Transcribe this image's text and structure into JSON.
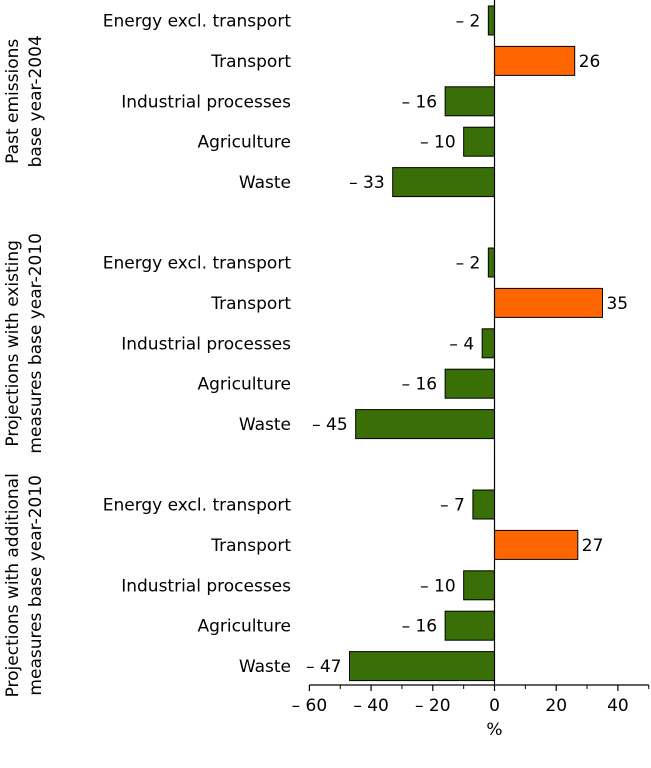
{
  "chart_data": {
    "type": "bar",
    "orientation": "horizontal",
    "xlabel": "%",
    "xlim": [
      -60,
      50
    ],
    "xticks": [
      -60,
      -40,
      -20,
      0,
      20,
      40
    ],
    "xtick_labels": [
      "– 60",
      "– 40",
      "– 20",
      "0",
      "20",
      "40"
    ],
    "colors": {
      "negative": "#3a6e06",
      "positive": "#ff6600"
    },
    "groups": [
      {
        "title_lines": [
          "Past emissions",
          "base year-2004"
        ],
        "categories": [
          "Energy excl. transport",
          "Transport",
          "Industrial processes",
          "Agriculture",
          "Waste"
        ],
        "values": [
          -2,
          26,
          -16,
          -10,
          -33
        ],
        "value_labels": [
          "– 2",
          "26",
          "– 16",
          "– 10",
          "– 33"
        ]
      },
      {
        "title_lines": [
          "Projections with existing",
          "measures base year-2010"
        ],
        "categories": [
          "Energy excl. transport",
          "Transport",
          "Industrial processes",
          "Agriculture",
          "Waste"
        ],
        "values": [
          -2,
          35,
          -4,
          -16,
          -45
        ],
        "value_labels": [
          "– 2",
          "35",
          "– 4",
          "– 16",
          "– 45"
        ]
      },
      {
        "title_lines": [
          "Projections with additional",
          "measures base year-2010"
        ],
        "categories": [
          "Energy excl. transport",
          "Transport",
          "Industrial processes",
          "Agriculture",
          "Waste"
        ],
        "values": [
          -7,
          27,
          -10,
          -16,
          -47
        ],
        "value_labels": [
          "– 7",
          "27",
          "– 10",
          "– 16",
          "– 47"
        ]
      }
    ]
  }
}
